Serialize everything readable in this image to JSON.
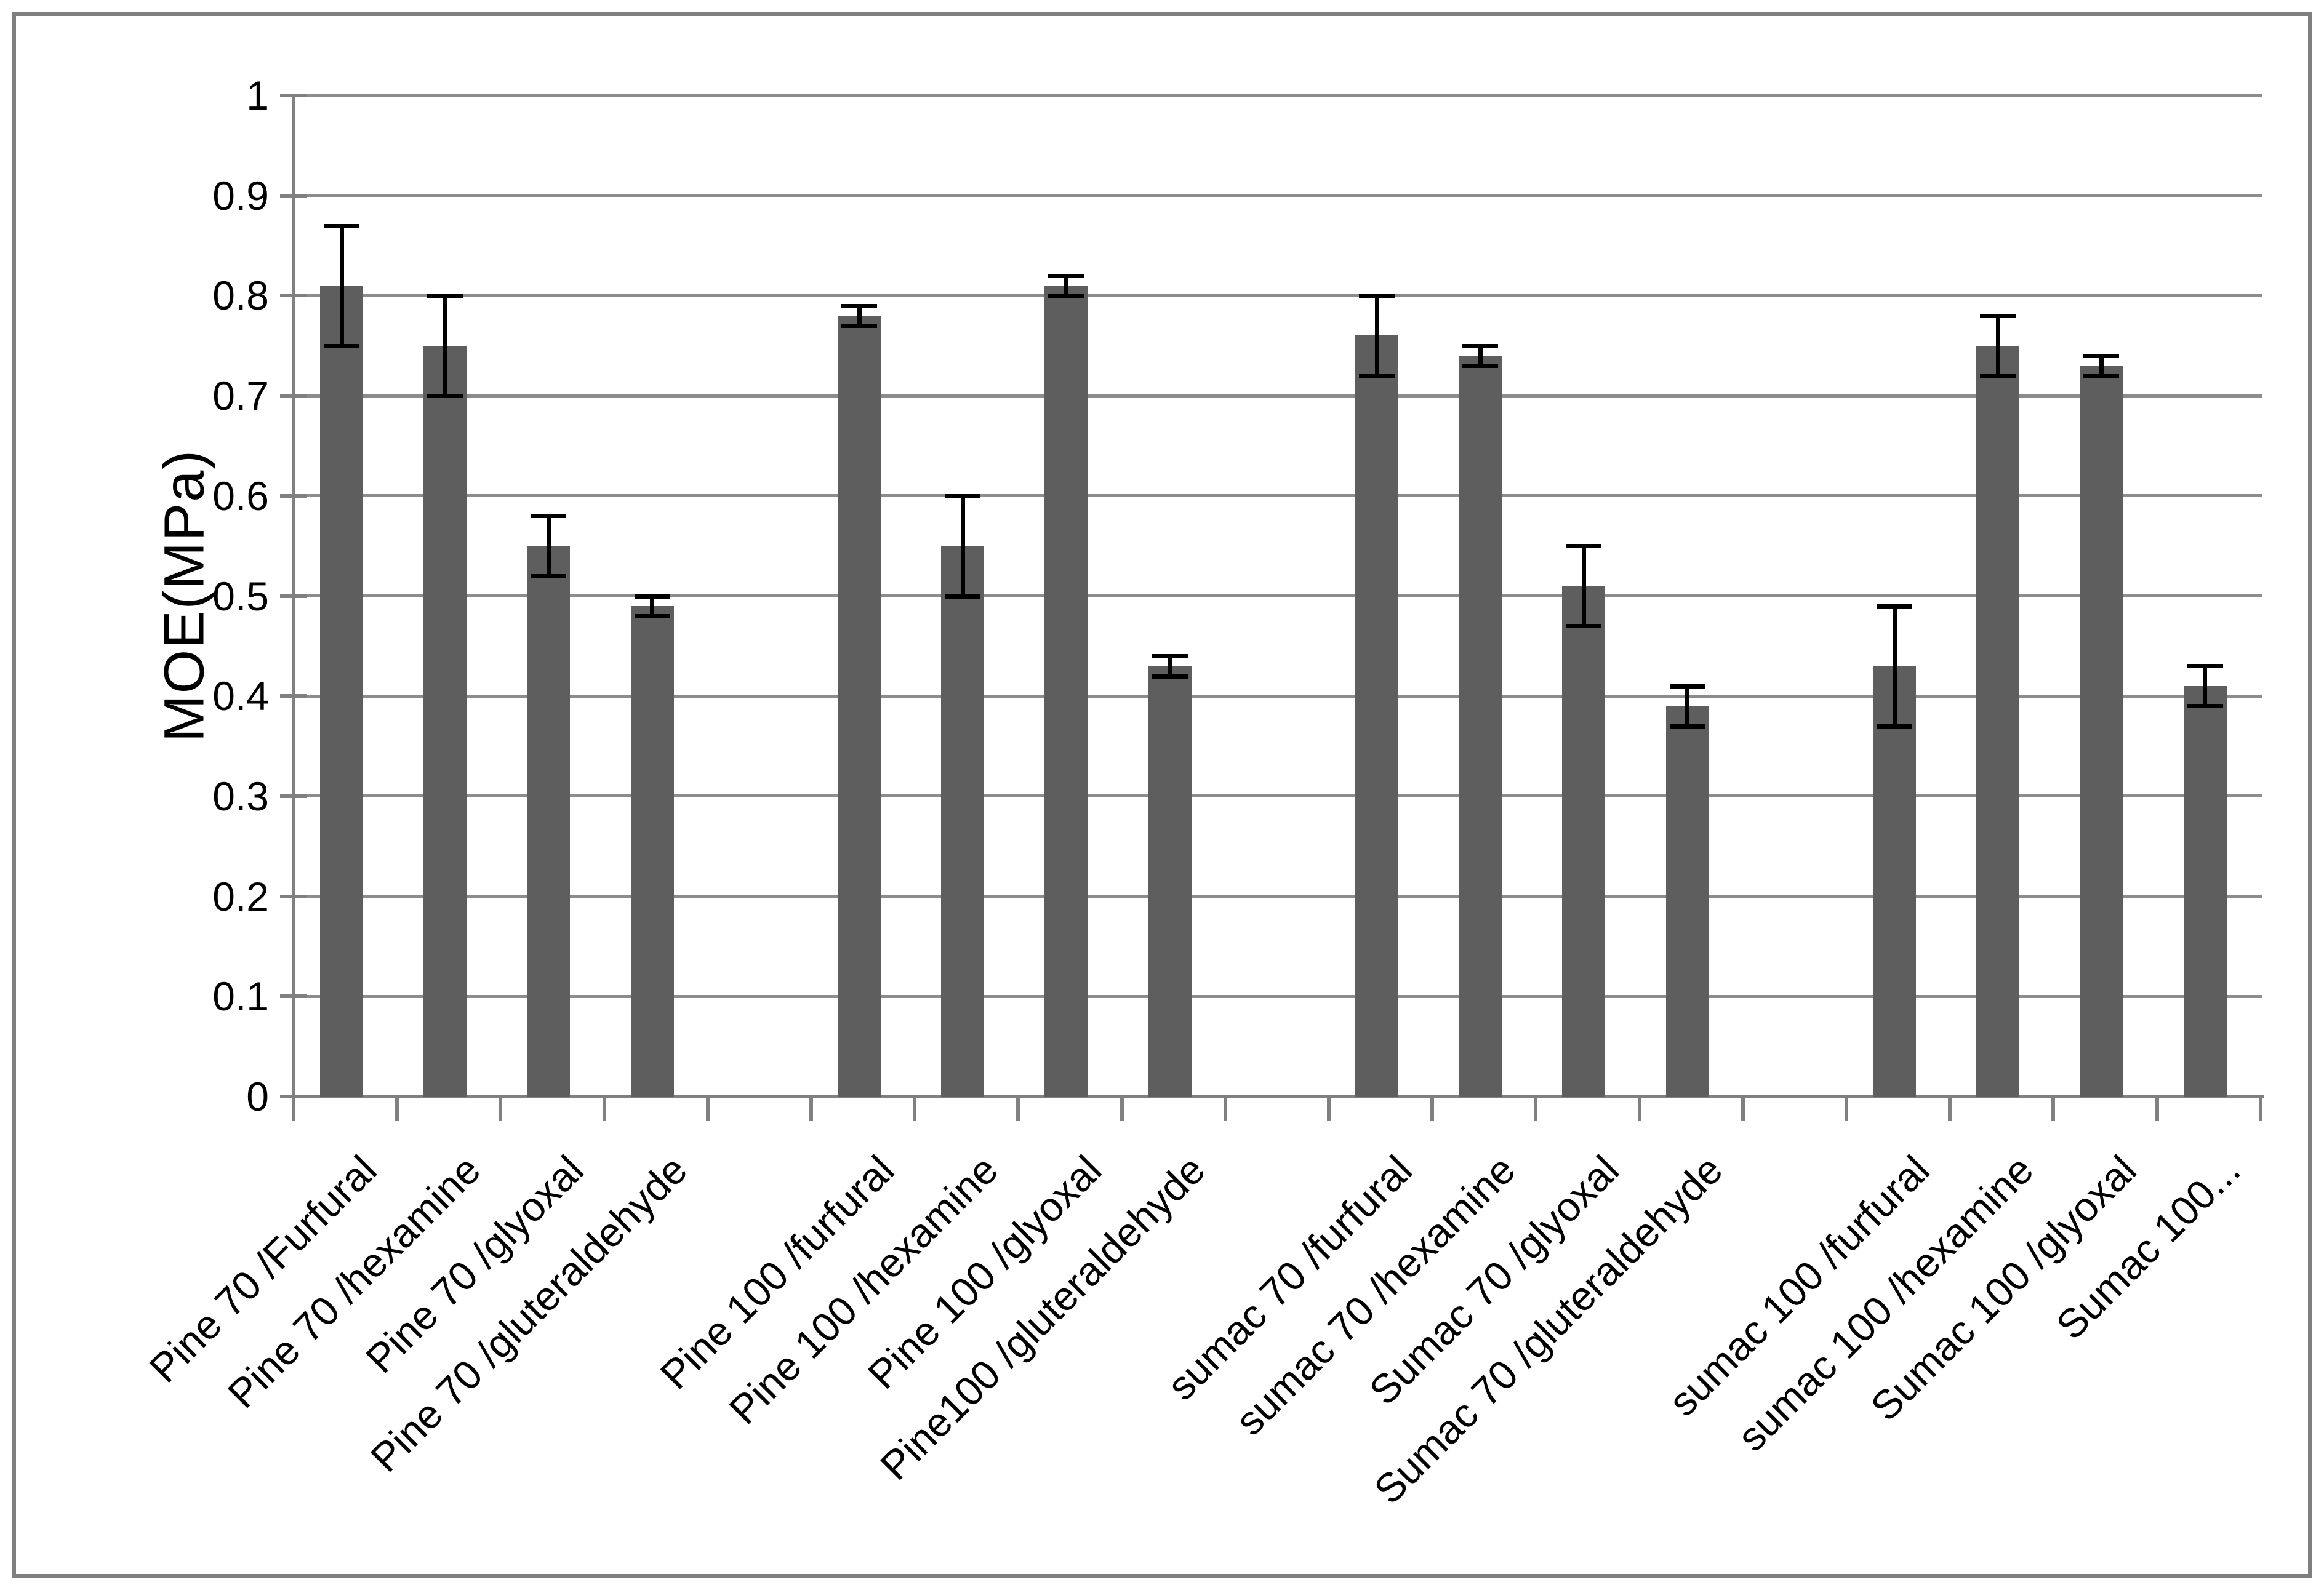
{
  "chart_data": {
    "type": "bar",
    "title": "",
    "xlabel": "",
    "ylabel": "MOE(MPa)",
    "ylim": [
      0,
      1
    ],
    "ytick_step": 0.1,
    "ytick_labels": [
      "0",
      "0.1",
      "0.2",
      "0.3",
      "0.4",
      "0.5",
      "0.6",
      "0.7",
      "0.8",
      "0.9",
      "1"
    ],
    "grid": "horizontal-on",
    "legend_position": "none",
    "bar_color": "#5e5e5e",
    "error_bar_color": "#000000",
    "gridline_color": "#8c8c8c",
    "axis_color": "#808080",
    "group_size": 4,
    "series": [
      {
        "label": "Pine 70 /Furfural",
        "value": 0.81,
        "error": 0.06,
        "group": 0
      },
      {
        "label": "Pine 70 /hexamine",
        "value": 0.75,
        "error": 0.05,
        "group": 0
      },
      {
        "label": "Pine 70 /glyoxal",
        "value": 0.55,
        "error": 0.03,
        "group": 0
      },
      {
        "label": "Pine 70 /gluteraldehyde",
        "value": 0.49,
        "error": 0.01,
        "group": 0
      },
      {
        "label": "Pine 100 /furfural",
        "value": 0.78,
        "error": 0.01,
        "group": 1
      },
      {
        "label": "Pine 100 /hexamine",
        "value": 0.55,
        "error": 0.05,
        "group": 1
      },
      {
        "label": "Pine 100 /glyoxal",
        "value": 0.81,
        "error": 0.01,
        "group": 1
      },
      {
        "label": "Pine100 /gluteraldehyde",
        "value": 0.43,
        "error": 0.01,
        "group": 1
      },
      {
        "label": "sumac 70 /furfural",
        "value": 0.76,
        "error": 0.04,
        "group": 2
      },
      {
        "label": "sumac 70 /hexamine",
        "value": 0.74,
        "error": 0.01,
        "group": 2
      },
      {
        "label": "Sumac 70 /glyoxal",
        "value": 0.51,
        "error": 0.04,
        "group": 2
      },
      {
        "label": "Sumac 70 /gluteraldehyde",
        "value": 0.39,
        "error": 0.02,
        "group": 2
      },
      {
        "label": "sumac 100 /furfural",
        "value": 0.43,
        "error": 0.06,
        "group": 3
      },
      {
        "label": "sumac 100 /hexamine",
        "value": 0.75,
        "error": 0.03,
        "group": 3
      },
      {
        "label": "Sumac 100 /glyoxal",
        "value": 0.73,
        "error": 0.01,
        "group": 3
      },
      {
        "label": "Sumac 100...",
        "value": 0.41,
        "error": 0.02,
        "group": 3
      }
    ]
  }
}
